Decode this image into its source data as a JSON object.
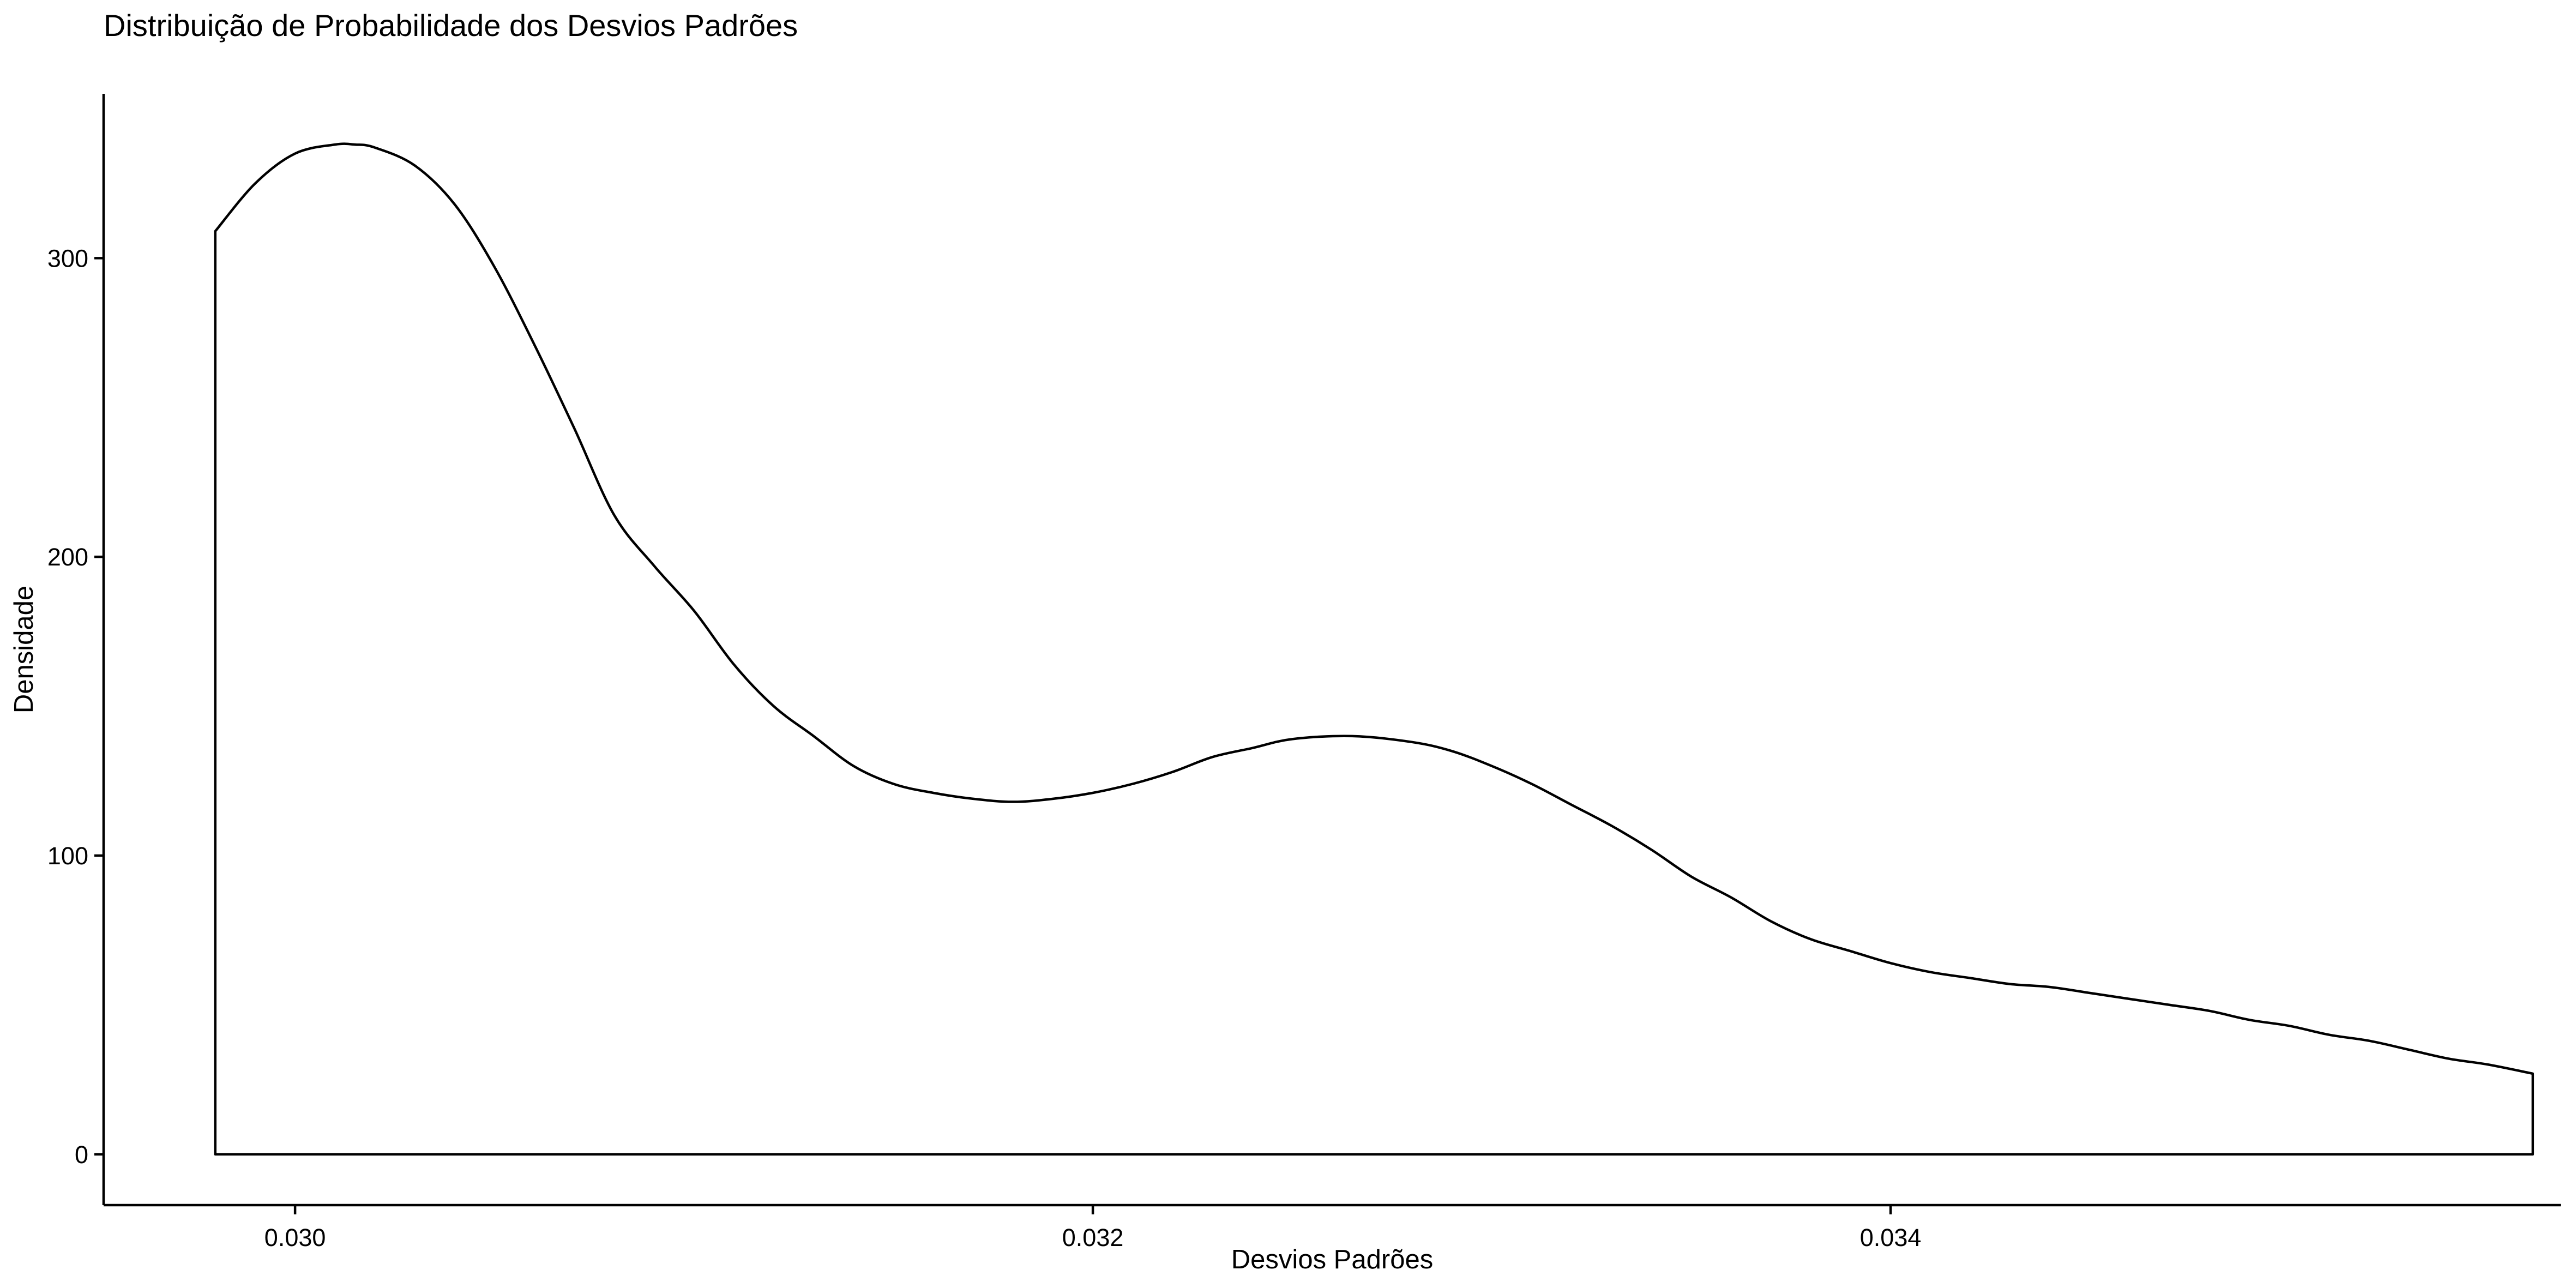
{
  "chart_data": {
    "type": "area",
    "title": "Distribuição de Probabilidade dos Desvios Padrões",
    "xlabel": "Desvios Padrões",
    "ylabel": "Densidade",
    "xlim": [
      0.02952,
      0.03568
    ],
    "ylim": [
      -17,
      355
    ],
    "x_ticks": [
      0.03,
      0.032,
      0.034
    ],
    "x_tick_labels": [
      "0.030",
      "0.032",
      "0.034"
    ],
    "y_ticks": [
      0,
      100,
      200,
      300
    ],
    "y_tick_labels": [
      "0",
      "100",
      "200",
      "300"
    ],
    "grid": false,
    "legend": "none",
    "fill": "none",
    "line_color": "#000000",
    "series": [
      {
        "x": [
          0.0298,
          0.0299,
          0.03,
          0.0301,
          0.03015,
          0.0302,
          0.0303,
          0.0304,
          0.0305,
          0.0306,
          0.0307,
          0.0308,
          0.0309,
          0.031,
          0.0311,
          0.0312,
          0.0313,
          0.0314,
          0.0315,
          0.0316,
          0.0317,
          0.0318,
          0.0319,
          0.032,
          0.0321,
          0.0322,
          0.0323,
          0.0324,
          0.0325,
          0.03265,
          0.0328,
          0.0329,
          0.033,
          0.0331,
          0.0332,
          0.0333,
          0.0334,
          0.0335,
          0.0336,
          0.0337,
          0.0338,
          0.0339,
          0.034,
          0.0341,
          0.0342,
          0.0343,
          0.0344,
          0.0345,
          0.0346,
          0.0347,
          0.0348,
          0.0349,
          0.035,
          0.0351,
          0.0352,
          0.0353,
          0.0354,
          0.0355,
          0.03561
        ],
        "y": [
          309,
          325,
          335,
          338,
          338,
          337,
          331,
          318,
          297,
          271,
          243,
          214,
          197,
          182,
          164,
          150,
          140,
          130,
          124,
          121,
          119,
          118,
          119,
          121,
          124,
          128,
          133,
          136,
          139,
          140,
          138,
          135,
          130,
          124,
          117,
          110,
          102,
          93,
          86,
          78,
          72,
          68,
          64,
          61,
          59,
          57,
          56,
          54,
          52,
          50,
          48,
          45,
          43,
          40,
          38,
          35,
          32,
          30,
          27
        ]
      }
    ]
  }
}
